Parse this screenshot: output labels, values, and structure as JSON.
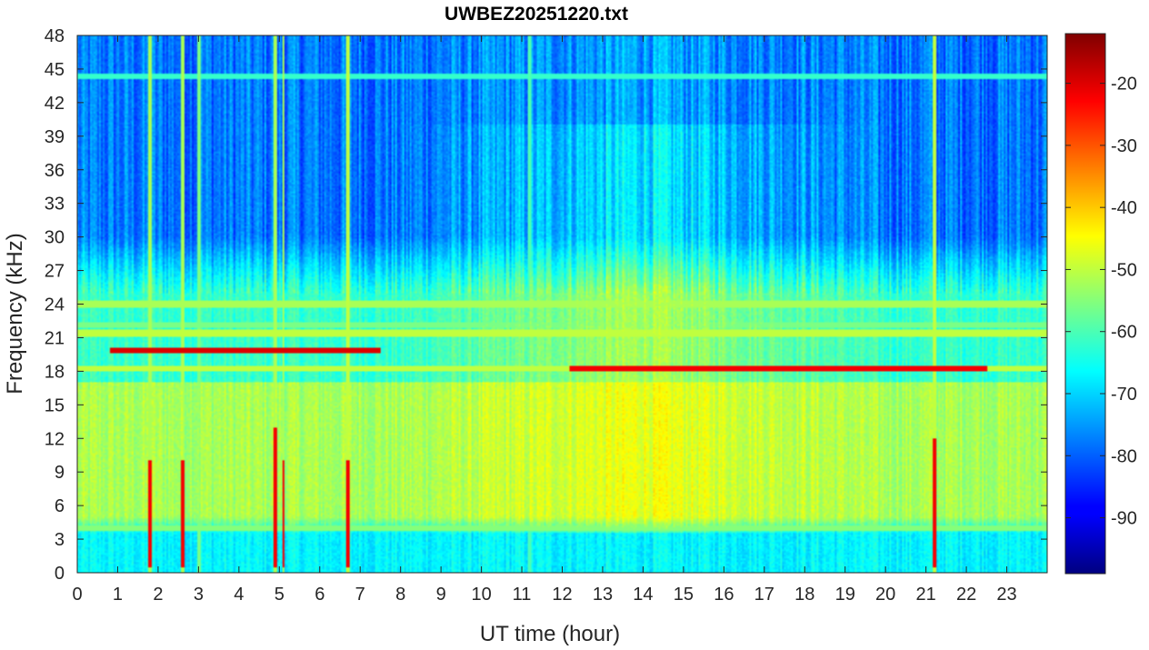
{
  "chart_data": {
    "type": "heatmap",
    "title": "UWBEZ20251220.txt",
    "xlabel": "UT time (hour)",
    "ylabel": "Frequency (kHz)",
    "xlim": [
      0,
      24
    ],
    "ylim": [
      0,
      48
    ],
    "x_ticks": [
      "0",
      "1",
      "2",
      "3",
      "4",
      "5",
      "6",
      "7",
      "8",
      "9",
      "10",
      "11",
      "12",
      "13",
      "14",
      "15",
      "16",
      "17",
      "18",
      "19",
      "20",
      "21",
      "22",
      "23"
    ],
    "y_ticks": [
      "0",
      "3",
      "6",
      "9",
      "12",
      "15",
      "18",
      "21",
      "24",
      "27",
      "30",
      "33",
      "36",
      "39",
      "42",
      "45",
      "48"
    ],
    "colorbar": {
      "colormap": "jet",
      "range": [
        -99,
        -12
      ],
      "ticks": [
        "-90",
        "-80",
        "-70",
        "-60",
        "-50",
        "-40",
        "-30",
        "-20"
      ],
      "tick_values": [
        -90,
        -80,
        -70,
        -60,
        -50,
        -40,
        -30,
        -20
      ]
    },
    "background_profile": {
      "description_levels_dB": [
        {
          "freq_range_kHz": [
            0,
            3.5
          ],
          "level_dB": -67
        },
        {
          "freq_range_kHz": [
            3.5,
            17
          ],
          "level_dB": -52
        },
        {
          "freq_range_kHz": [
            17,
            25
          ],
          "level_dB": -62
        },
        {
          "freq_range_kHz": [
            25,
            48
          ],
          "level_dB": -78
        }
      ],
      "daytime_enhancement": {
        "time_range_hour": [
          8,
          20
        ],
        "level_dB": -47
      }
    },
    "horizontal_lines": [
      {
        "freq_kHz": 19.8,
        "time_range_hour": [
          0.8,
          7.5
        ],
        "level_dB": -20
      },
      {
        "freq_kHz": 18.2,
        "time_range_hour": [
          12.2,
          22.5
        ],
        "level_dB": -22
      },
      {
        "freq_kHz": 18.2,
        "time_range_hour": [
          0,
          24
        ],
        "level_dB": -50
      },
      {
        "freq_kHz": 21.4,
        "time_range_hour": [
          0,
          24
        ],
        "level_dB": -50
      },
      {
        "freq_kHz": 22.2,
        "time_range_hour": [
          0,
          24
        ],
        "level_dB": -56
      },
      {
        "freq_kHz": 24.0,
        "time_range_hour": [
          0,
          24
        ],
        "level_dB": -52
      },
      {
        "freq_kHz": 44.3,
        "time_range_hour": [
          0,
          24
        ],
        "level_dB": -62
      },
      {
        "freq_kHz": 3.9,
        "time_range_hour": [
          0,
          24
        ],
        "level_dB": -55
      }
    ],
    "vertical_events": [
      {
        "time_hour": 1.8,
        "level_dB": -52,
        "red_below_kHz": 10
      },
      {
        "time_hour": 2.6,
        "level_dB": -52,
        "red_below_kHz": 10
      },
      {
        "time_hour": 3.0,
        "level_dB": -56,
        "red_below_kHz": 0
      },
      {
        "time_hour": 4.9,
        "level_dB": -52,
        "red_below_kHz": 13
      },
      {
        "time_hour": 5.1,
        "level_dB": -52,
        "red_below_kHz": 10
      },
      {
        "time_hour": 6.7,
        "level_dB": -50,
        "red_below_kHz": 10
      },
      {
        "time_hour": 11.2,
        "level_dB": -60,
        "red_below_kHz": 0
      },
      {
        "time_hour": 21.2,
        "level_dB": -50,
        "red_below_kHz": 12
      }
    ],
    "grid": false,
    "legend": "colorbar-right"
  }
}
